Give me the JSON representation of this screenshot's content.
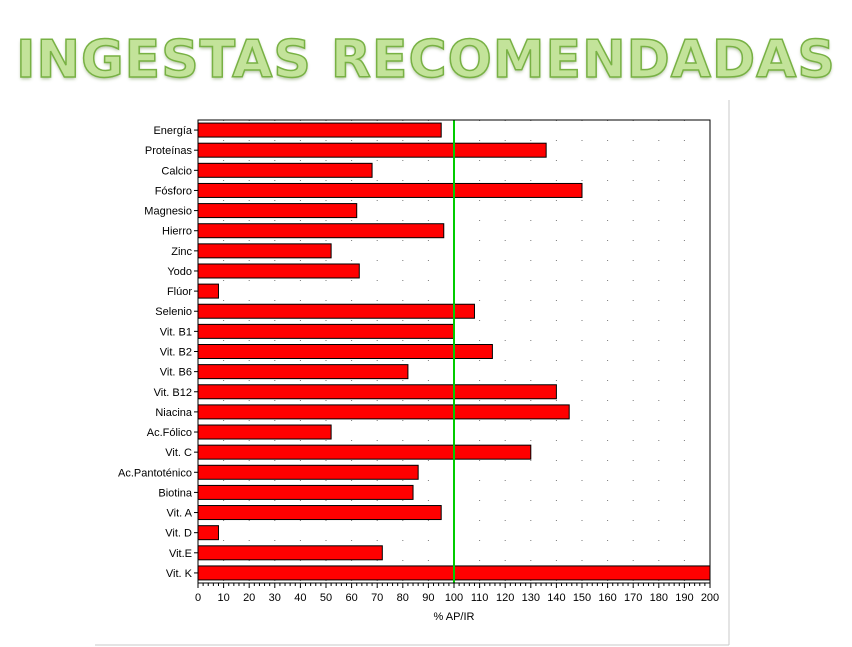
{
  "slide": {
    "title": "INGESTAS RECOMENDADAS"
  },
  "chart_data": {
    "type": "bar",
    "orientation": "horizontal",
    "title": "",
    "xlabel": "% AP/IR",
    "ylabel": "",
    "xlim": [
      0,
      200
    ],
    "xticks": [
      0,
      10,
      20,
      30,
      40,
      50,
      60,
      70,
      80,
      90,
      100,
      110,
      120,
      130,
      140,
      150,
      160,
      170,
      180,
      190,
      200
    ],
    "reference_line": {
      "value": 100,
      "color": "#00cc00"
    },
    "bar_color": "#ff0000",
    "grid": "vertical dotted",
    "categories": [
      "Energía",
      "Proteínas",
      "Calcio",
      "Fósforo",
      "Magnesio",
      "Hierro",
      "Zinc",
      "Yodo",
      "Flúor",
      "Selenio",
      "Vit. B1",
      "Vit. B2",
      "Vit. B6",
      "Vit. B12",
      "Niacina",
      "Ac.Fólico",
      "Vit. C",
      "Ac.Pantoténico",
      "Biotina",
      "Vit. A",
      "Vit. D",
      "Vit.E",
      "Vit. K"
    ],
    "values": [
      95,
      136,
      68,
      150,
      62,
      96,
      52,
      63,
      8,
      108,
      100,
      115,
      82,
      140,
      145,
      52,
      130,
      86,
      84,
      95,
      8,
      72,
      200
    ]
  }
}
